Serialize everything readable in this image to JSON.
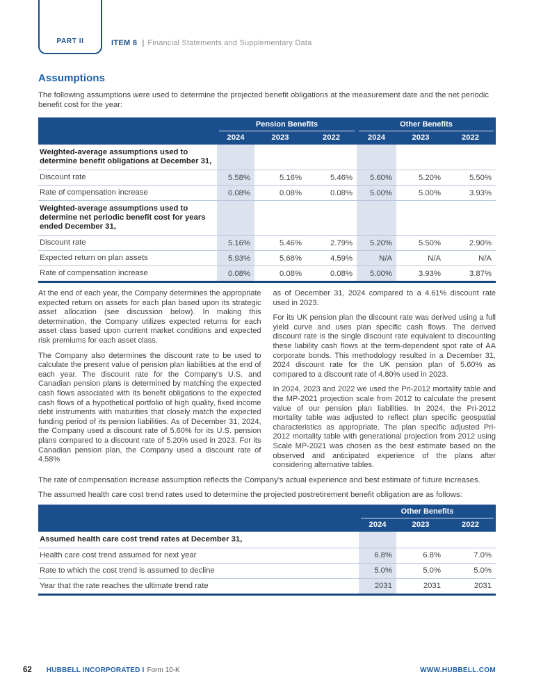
{
  "colors": {
    "navy": "#1b4e8c",
    "navy-dark": "#17477f",
    "heading-blue": "#1e5fa6",
    "shade": "#dce3ee",
    "rowline": "#b9c8dc",
    "body-text": "#414245",
    "gray-text": "#919497"
  },
  "header": {
    "part_label": "PART II",
    "item_label": "ITEM 8",
    "separator": "|",
    "item_title": "Financial Statements and Supplementary Data"
  },
  "page": {
    "heading": "Assumptions",
    "intro": "The following assumptions were used to determine the projected benefit obligations at the measurement date and the net periodic benefit cost for the year:"
  },
  "table1": {
    "groups": [
      "Pension Benefits",
      "Other Benefits"
    ],
    "years": [
      "2024",
      "2023",
      "2022",
      "2024",
      "2023",
      "2022"
    ],
    "rows": [
      {
        "type": "section",
        "label": "Weighted-average assumptions used to determine benefit obligations at December 31,"
      },
      {
        "type": "data",
        "label": "Discount rate",
        "values": [
          "5.58%",
          "5.16%",
          "5.46%",
          "5.60%",
          "5.20%",
          "5.50%"
        ]
      },
      {
        "type": "data",
        "label": "Rate of compensation increase",
        "values": [
          "0.08%",
          "0.08%",
          "0.08%",
          "5.00%",
          "5.00%",
          "3.93%"
        ]
      },
      {
        "type": "section",
        "label": "Weighted-average assumptions used to determine net periodic benefit cost for years ended December 31,"
      },
      {
        "type": "data",
        "label": "Discount rate",
        "values": [
          "5.16%",
          "5.46%",
          "2.79%",
          "5.20%",
          "5.50%",
          "2.90%"
        ]
      },
      {
        "type": "data",
        "label": "Expected return on plan assets",
        "values": [
          "5.93%",
          "5.68%",
          "4.59%",
          "N/A",
          "N/A",
          "N/A"
        ]
      },
      {
        "type": "data",
        "label": "Rate of compensation increase",
        "values": [
          "0.08%",
          "0.08%",
          "0.08%",
          "5.00%",
          "3.93%",
          "3.87%"
        ]
      }
    ]
  },
  "body": {
    "col1": [
      "At the end of each year, the Company determines the appropriate expected return on assets for each plan based upon its strategic asset allocation (see discussion below). In making this determination, the Company utilizes expected returns for each asset class based upon current market conditions and expected risk premiums for each asset class.",
      "The Company also determines the discount rate to be used to calculate the present value of pension plan liabilities at the end of each year. The discount rate for the Company's U.S. and Canadian pension plans is determined by matching the expected cash flows associated with its benefit obligations to the expected cash flows of a hypothetical portfolio of high quality, fixed income debt instruments with maturities that closely match the expected funding period of its pension liabilities. As of December 31, 2024, the Company used a discount rate of 5.60% for its U.S. pension plans compared to a discount rate of 5.20% used in 2023. For its Canadian pension plan, the Company used a discount rate of 4.58%"
    ],
    "col2": [
      "as of December 31, 2024 compared to a 4.61% discount rate used in 2023.",
      "For its UK pension plan the discount rate was derived using a full yield curve and uses plan specific cash flows. The derived discount rate is the single discount rate equivalent to discounting these liability cash flows at the term-dependent spot rate of AA corporate bonds. This methodology resulted in a December 31, 2024 discount rate for the UK pension plan of 5.60% as compared to a discount rate of 4.80% used in 2023.",
      "In 2024, 2023 and 2022 we used the Pri-2012 mortality table and the MP-2021 projection scale from 2012 to calculate the present value of our pension plan liabilities. In 2024, the Pri-2012 mortality table was adjusted to reflect plan specific geospatial characteristics as appropriate. The plan specific adjusted Pri-2012 mortality table with generational projection from 2012 using Scale MP-2021 was chosen as the best estimate based on the observed and anticipated experience of the plans after considering alternative tables."
    ],
    "full": [
      "The rate of compensation increase assumption reflects the Company's actual experience and best estimate of future increases.",
      "The assumed health care cost trend rates used to determine the projected postretirement benefit obligation are as follows:"
    ]
  },
  "table2": {
    "group": "Other Benefits",
    "years": [
      "2024",
      "2023",
      "2022"
    ],
    "rows": [
      {
        "type": "section",
        "label": "Assumed health care cost trend rates at December 31,"
      },
      {
        "type": "data",
        "label": "Health care cost trend assumed for next year",
        "values": [
          "6.8%",
          "6.8%",
          "7.0%"
        ]
      },
      {
        "type": "data",
        "label": "Rate to which the cost trend is assumed to decline",
        "values": [
          "5.0%",
          "5.0%",
          "5.0%"
        ]
      },
      {
        "type": "data",
        "label": "Year that the rate reaches the ultimate trend rate",
        "values": [
          "2031",
          "2031",
          "2031"
        ]
      }
    ]
  },
  "footer": {
    "page_number": "62",
    "company": "HUBBELL INCORPORATED I",
    "form": "Form 10-K",
    "website": "WWW.HUBBELL.COM"
  }
}
